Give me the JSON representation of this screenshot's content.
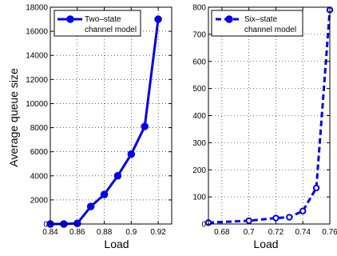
{
  "chart_data": [
    {
      "type": "line",
      "x": [
        0.84,
        0.85,
        0.86,
        0.87,
        0.88,
        0.89,
        0.9,
        0.91,
        0.92
      ],
      "series": [
        {
          "name": "Two–state channel model",
          "values": [
            0,
            0,
            50,
            1450,
            2450,
            4000,
            5800,
            8100,
            17000
          ],
          "color": "#0000ee",
          "style": "solid",
          "marker": "filled-circle"
        }
      ],
      "xlim": [
        0.84,
        0.93
      ],
      "ylim": [
        0,
        18000
      ],
      "xticks": [
        "0.84",
        "0.86",
        "0.88",
        "0.9",
        "0.92"
      ],
      "xtick_values": [
        0.84,
        0.86,
        0.88,
        0.9,
        0.92
      ],
      "yticks": [
        "0",
        "2000",
        "4000",
        "6000",
        "8000",
        "10000",
        "12000",
        "14000",
        "16000",
        "18000"
      ],
      "ytick_values": [
        0,
        2000,
        4000,
        6000,
        8000,
        10000,
        12000,
        14000,
        16000,
        18000
      ],
      "xlabel": "Load",
      "ylabel": "Average queue size",
      "legend": [
        "Two–state",
        "channel model"
      ],
      "legend_position": "top-left",
      "grid": true
    },
    {
      "type": "line",
      "x": [
        0.67,
        0.7,
        0.72,
        0.73,
        0.74,
        0.75,
        0.76
      ],
      "series": [
        {
          "name": "Six–state channel model",
          "values": [
            5,
            12,
            22,
            25,
            48,
            133,
            790
          ],
          "color": "#0000ee",
          "style": "dashed",
          "marker": "hollow-circle"
        }
      ],
      "xlim": [
        0.67,
        0.76
      ],
      "ylim": [
        0,
        800
      ],
      "xticks": [
        "0.68",
        "0.7",
        "0.72",
        "0.74",
        "0.76"
      ],
      "xtick_values": [
        0.68,
        0.7,
        0.72,
        0.74,
        0.76
      ],
      "yticks": [
        "0",
        "100",
        "200",
        "300",
        "400",
        "500",
        "600",
        "700",
        "800"
      ],
      "ytick_values": [
        0,
        100,
        200,
        300,
        400,
        500,
        600,
        700,
        800
      ],
      "xlabel": "Load",
      "ylabel": "",
      "legend": [
        "Six–state",
        "channel model"
      ],
      "legend_position": "top-left",
      "grid": true
    }
  ]
}
